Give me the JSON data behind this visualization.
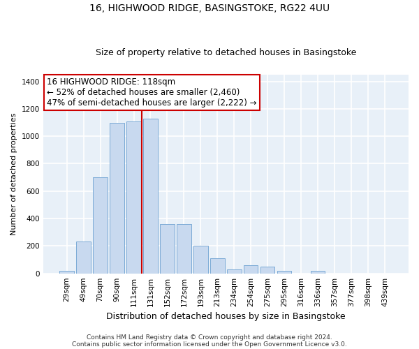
{
  "title1": "16, HIGHWOOD RIDGE, BASINGSTOKE, RG22 4UU",
  "title2": "Size of property relative to detached houses in Basingstoke",
  "xlabel": "Distribution of detached houses by size in Basingstoke",
  "ylabel": "Number of detached properties",
  "categories": [
    "29sqm",
    "49sqm",
    "70sqm",
    "90sqm",
    "111sqm",
    "131sqm",
    "152sqm",
    "172sqm",
    "193sqm",
    "213sqm",
    "234sqm",
    "254sqm",
    "275sqm",
    "295sqm",
    "316sqm",
    "336sqm",
    "357sqm",
    "377sqm",
    "398sqm",
    "439sqm"
  ],
  "values": [
    20,
    230,
    700,
    1100,
    1110,
    1130,
    360,
    360,
    200,
    110,
    30,
    60,
    50,
    20,
    0,
    20,
    0,
    0,
    0,
    0
  ],
  "bar_color": "#c8d9ef",
  "bar_edge_color": "#7baad6",
  "plot_bg_color": "#e8f0f8",
  "grid_color": "#ffffff",
  "fig_bg_color": "#ffffff",
  "annotation_box_color": "#ffffff",
  "annotation_box_edge": "#cc0000",
  "vline_color": "#cc0000",
  "vline_x": 4.5,
  "annotation_text": "16 HIGHWOOD RIDGE: 118sqm\n← 52% of detached houses are smaller (2,460)\n47% of semi-detached houses are larger (2,222) →",
  "annotation_fontsize": 8.5,
  "footnote1": "Contains HM Land Registry data © Crown copyright and database right 2024.",
  "footnote2": "Contains public sector information licensed under the Open Government Licence v3.0.",
  "ylim": [
    0,
    1450
  ],
  "yticks": [
    0,
    200,
    400,
    600,
    800,
    1000,
    1200,
    1400
  ],
  "title_fontsize1": 10,
  "title_fontsize2": 9,
  "ylabel_fontsize": 8,
  "xlabel_fontsize": 9,
  "tick_fontsize": 7.5,
  "footnote_fontsize": 6.5
}
